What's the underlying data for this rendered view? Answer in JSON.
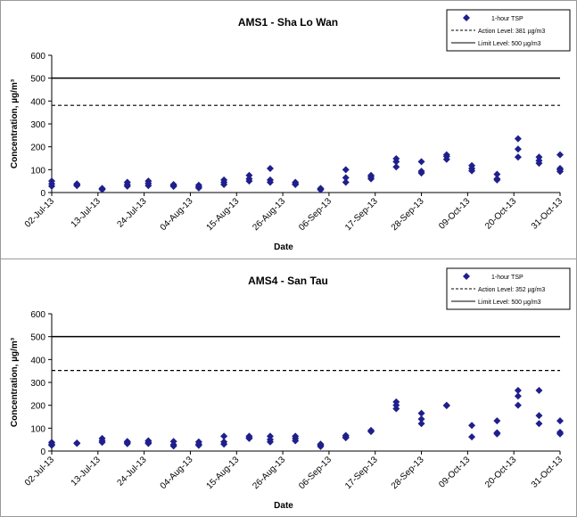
{
  "chart_data": [
    {
      "type": "scatter",
      "title": "AMS1 - Sha Lo Wan",
      "xlabel": "Date",
      "ylabel": "Concentration, µg/m³",
      "ylim": [
        0,
        600
      ],
      "yticks": [
        "0",
        "100",
        "200",
        "300",
        "400",
        "500",
        "600"
      ],
      "xticks": [
        "02-Jul-13",
        "13-Jul-13",
        "24-Jul-13",
        "04-Aug-13",
        "15-Aug-13",
        "26-Aug-13",
        "06-Sep-13",
        "17-Sep-13",
        "28-Sep-13",
        "09-Oct-13",
        "20-Oct-13",
        "31-Oct-13"
      ],
      "xlim": [
        "2013-07-02",
        "2013-10-31"
      ],
      "legend": {
        "placement": "top-right",
        "entries": [
          "1-hour TSP",
          "Action Level: 381 µg/m3",
          "Limit Level: 500 µg/m3"
        ]
      },
      "colors": {
        "points": "#1f1f8c",
        "lines": "#000000"
      },
      "action_level": 381,
      "limit_level": 500,
      "series": [
        {
          "name": "1-hour TSP",
          "points": [
            [
              "2013-07-02",
              50
            ],
            [
              "2013-07-02",
              38
            ],
            [
              "2013-07-02",
              28
            ],
            [
              "2013-07-08",
              38
            ],
            [
              "2013-07-08",
              33
            ],
            [
              "2013-07-08",
              30
            ],
            [
              "2013-07-14",
              18
            ],
            [
              "2013-07-14",
              15
            ],
            [
              "2013-07-14",
              13
            ],
            [
              "2013-07-20",
              45
            ],
            [
              "2013-07-20",
              35
            ],
            [
              "2013-07-20",
              28
            ],
            [
              "2013-07-25",
              50
            ],
            [
              "2013-07-25",
              40
            ],
            [
              "2013-07-25",
              30
            ],
            [
              "2013-07-31",
              35
            ],
            [
              "2013-07-31",
              30
            ],
            [
              "2013-07-31",
              27
            ],
            [
              "2013-08-06",
              32
            ],
            [
              "2013-08-06",
              25
            ],
            [
              "2013-08-06",
              20
            ],
            [
              "2013-08-12",
              55
            ],
            [
              "2013-08-12",
              45
            ],
            [
              "2013-08-12",
              35
            ],
            [
              "2013-08-18",
              75
            ],
            [
              "2013-08-18",
              60
            ],
            [
              "2013-08-18",
              50
            ],
            [
              "2013-08-23",
              105
            ],
            [
              "2013-08-23",
              55
            ],
            [
              "2013-08-23",
              45
            ],
            [
              "2013-08-29",
              45
            ],
            [
              "2013-08-29",
              38
            ],
            [
              "2013-08-29",
              35
            ],
            [
              "2013-09-04",
              18
            ],
            [
              "2013-09-04",
              15
            ],
            [
              "2013-09-04",
              12
            ],
            [
              "2013-09-10",
              100
            ],
            [
              "2013-09-10",
              65
            ],
            [
              "2013-09-10",
              45
            ],
            [
              "2013-09-16",
              75
            ],
            [
              "2013-09-16",
              68
            ],
            [
              "2013-09-16",
              60
            ],
            [
              "2013-09-22",
              148
            ],
            [
              "2013-09-22",
              135
            ],
            [
              "2013-09-22",
              112
            ],
            [
              "2013-09-28",
              135
            ],
            [
              "2013-09-28",
              93
            ],
            [
              "2013-09-28",
              85
            ],
            [
              "2013-10-04",
              165
            ],
            [
              "2013-10-04",
              158
            ],
            [
              "2013-10-04",
              145
            ],
            [
              "2013-10-10",
              118
            ],
            [
              "2013-10-10",
              105
            ],
            [
              "2013-10-10",
              95
            ],
            [
              "2013-10-16",
              80
            ],
            [
              "2013-10-16",
              60
            ],
            [
              "2013-10-16",
              55
            ],
            [
              "2013-10-21",
              235
            ],
            [
              "2013-10-21",
              190
            ],
            [
              "2013-10-21",
              155
            ],
            [
              "2013-10-26",
              155
            ],
            [
              "2013-10-26",
              140
            ],
            [
              "2013-10-26",
              128
            ],
            [
              "2013-10-31",
              165
            ],
            [
              "2013-10-31",
              105
            ],
            [
              "2013-10-31",
              100
            ],
            [
              "2013-10-31",
              92
            ]
          ]
        }
      ]
    },
    {
      "type": "scatter",
      "title": "AMS4 - San Tau",
      "xlabel": "Date",
      "ylabel": "Concentration, µg/m³",
      "ylim": [
        0,
        600
      ],
      "yticks": [
        "0",
        "100",
        "200",
        "300",
        "400",
        "500",
        "600"
      ],
      "xticks": [
        "02-Jul-13",
        "13-Jul-13",
        "24-Jul-13",
        "04-Aug-13",
        "15-Aug-13",
        "26-Aug-13",
        "06-Sep-13",
        "17-Sep-13",
        "28-Sep-13",
        "09-Oct-13",
        "20-Oct-13",
        "31-Oct-13"
      ],
      "xlim": [
        "2013-07-02",
        "2013-10-31"
      ],
      "legend": {
        "placement": "top-right",
        "entries": [
          "1-hour TSP",
          "Action Level: 352 µg/m3",
          "Limit Level: 500 µg/m3"
        ]
      },
      "colors": {
        "points": "#1f1f8c",
        "lines": "#000000"
      },
      "action_level": 352,
      "limit_level": 500,
      "series": [
        {
          "name": "1-hour TSP",
          "points": [
            [
              "2013-07-02",
              38
            ],
            [
              "2013-07-02",
              30
            ],
            [
              "2013-07-02",
              25
            ],
            [
              "2013-07-08",
              35
            ],
            [
              "2013-07-08",
              33
            ],
            [
              "2013-07-14",
              55
            ],
            [
              "2013-07-14",
              45
            ],
            [
              "2013-07-14",
              38
            ],
            [
              "2013-07-20",
              42
            ],
            [
              "2013-07-20",
              38
            ],
            [
              "2013-07-20",
              32
            ],
            [
              "2013-07-25",
              45
            ],
            [
              "2013-07-25",
              38
            ],
            [
              "2013-07-25",
              33
            ],
            [
              "2013-07-31",
              42
            ],
            [
              "2013-07-31",
              28
            ],
            [
              "2013-07-31",
              22
            ],
            [
              "2013-08-06",
              40
            ],
            [
              "2013-08-06",
              30
            ],
            [
              "2013-08-06",
              25
            ],
            [
              "2013-08-12",
              65
            ],
            [
              "2013-08-12",
              40
            ],
            [
              "2013-08-12",
              30
            ],
            [
              "2013-08-18",
              65
            ],
            [
              "2013-08-18",
              58
            ],
            [
              "2013-08-18",
              55
            ],
            [
              "2013-08-23",
              65
            ],
            [
              "2013-08-23",
              50
            ],
            [
              "2013-08-23",
              40
            ],
            [
              "2013-08-29",
              65
            ],
            [
              "2013-08-29",
              55
            ],
            [
              "2013-08-29",
              45
            ],
            [
              "2013-09-04",
              30
            ],
            [
              "2013-09-04",
              25
            ],
            [
              "2013-09-04",
              20
            ],
            [
              "2013-09-10",
              68
            ],
            [
              "2013-09-10",
              62
            ],
            [
              "2013-09-10",
              58
            ],
            [
              "2013-09-16",
              90
            ],
            [
              "2013-09-16",
              85
            ],
            [
              "2013-09-22",
              215
            ],
            [
              "2013-09-22",
              200
            ],
            [
              "2013-09-22",
              185
            ],
            [
              "2013-09-28",
              165
            ],
            [
              "2013-09-28",
              140
            ],
            [
              "2013-09-28",
              120
            ],
            [
              "2013-10-04",
              200
            ],
            [
              "2013-10-04",
              198
            ],
            [
              "2013-10-10",
              112
            ],
            [
              "2013-10-10",
              62
            ],
            [
              "2013-10-16",
              132
            ],
            [
              "2013-10-16",
              80
            ],
            [
              "2013-10-16",
              75
            ],
            [
              "2013-10-21",
              265
            ],
            [
              "2013-10-21",
              240
            ],
            [
              "2013-10-21",
              200
            ],
            [
              "2013-10-26",
              265
            ],
            [
              "2013-10-26",
              155
            ],
            [
              "2013-10-26",
              120
            ],
            [
              "2013-10-31",
              132
            ],
            [
              "2013-10-31",
              82
            ],
            [
              "2013-10-31",
              75
            ]
          ]
        }
      ]
    }
  ]
}
